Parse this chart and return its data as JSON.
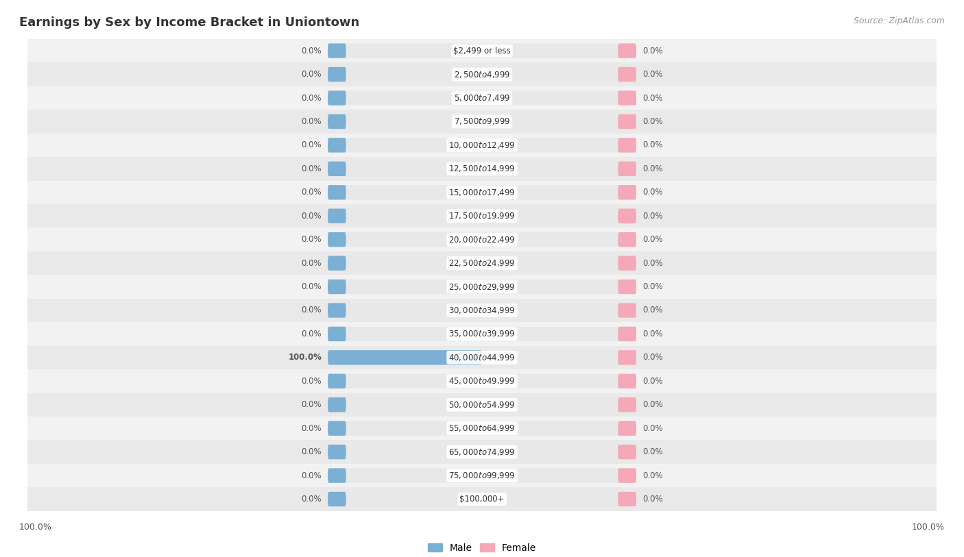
{
  "title": "Earnings by Sex by Income Bracket in Uniontown",
  "source": "Source: ZipAtlas.com",
  "categories": [
    "$2,499 or less",
    "$2,500 to $4,999",
    "$5,000 to $7,499",
    "$7,500 to $9,999",
    "$10,000 to $12,499",
    "$12,500 to $14,999",
    "$15,000 to $17,499",
    "$17,500 to $19,999",
    "$20,000 to $22,499",
    "$22,500 to $24,999",
    "$25,000 to $29,999",
    "$30,000 to $34,999",
    "$35,000 to $39,999",
    "$40,000 to $44,999",
    "$45,000 to $49,999",
    "$50,000 to $54,999",
    "$55,000 to $64,999",
    "$65,000 to $74,999",
    "$75,000 to $99,999",
    "$100,000+"
  ],
  "male_values": [
    0.0,
    0.0,
    0.0,
    0.0,
    0.0,
    0.0,
    0.0,
    0.0,
    0.0,
    0.0,
    0.0,
    0.0,
    0.0,
    100.0,
    0.0,
    0.0,
    0.0,
    0.0,
    0.0,
    0.0
  ],
  "female_values": [
    0.0,
    0.0,
    0.0,
    0.0,
    0.0,
    0.0,
    0.0,
    0.0,
    0.0,
    0.0,
    0.0,
    0.0,
    0.0,
    0.0,
    0.0,
    0.0,
    0.0,
    0.0,
    0.0,
    0.0
  ],
  "male_color": "#7bafd4",
  "female_color": "#f4a8b8",
  "pill_bg_color": "#e8e8e8",
  "label_color": "#555555",
  "title_color": "#333333",
  "x_max": 100.0,
  "background_color": "#ffffff",
  "row_colors": [
    "#f0f0f0",
    "#e8e8e8"
  ],
  "legend_male": "Male",
  "legend_female": "Female"
}
